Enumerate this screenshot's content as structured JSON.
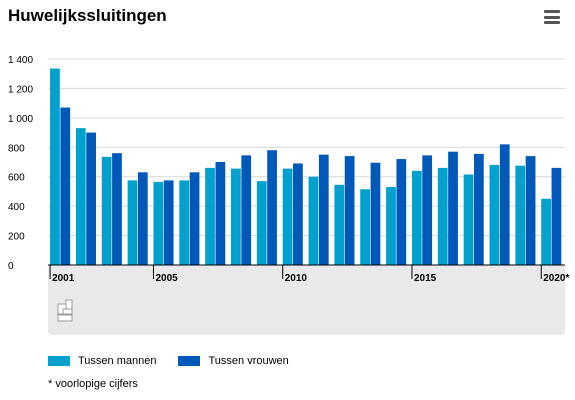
{
  "title": "Huwelijkssluitingen",
  "menu_icon": "hamburger-menu-icon",
  "footnote": "* voorlopige cijfers",
  "colors": {
    "series_1": "#00a1cd",
    "series_2": "#0058b8",
    "panel": "#e9e9e9",
    "axis": "#000000",
    "grid": "#d9d9d9"
  },
  "chart_data": {
    "type": "bar",
    "x": [
      "2001",
      "2002",
      "2003",
      "2004",
      "2005",
      "2006",
      "2007",
      "2008",
      "2009",
      "2010",
      "2011",
      "2012",
      "2013",
      "2014",
      "2015",
      "2016",
      "2017",
      "2018",
      "2019",
      "2020*"
    ],
    "x_tick_labels": [
      "2001",
      "2005",
      "2010",
      "2015",
      "2020*"
    ],
    "y_tick_labels": [
      "0",
      "200",
      "400",
      "600",
      "800",
      "1 000",
      "1 200",
      "1 400"
    ],
    "y_ticks": [
      0,
      200,
      400,
      600,
      800,
      1000,
      1200,
      1400
    ],
    "ylim": [
      0,
      1400
    ],
    "grid": true,
    "legend_position": "bottom",
    "series": [
      {
        "name": "Tussen mannen",
        "color": "#00a1cd",
        "values": [
          1335,
          930,
          735,
          575,
          565,
          575,
          660,
          655,
          570,
          655,
          600,
          545,
          515,
          530,
          640,
          660,
          615,
          680,
          675,
          450
        ]
      },
      {
        "name": "Tussen vrouwen",
        "color": "#0058b8",
        "values": [
          1070,
          900,
          760,
          630,
          575,
          630,
          700,
          745,
          780,
          690,
          750,
          740,
          695,
          720,
          745,
          770,
          755,
          820,
          740,
          660
        ]
      }
    ]
  }
}
